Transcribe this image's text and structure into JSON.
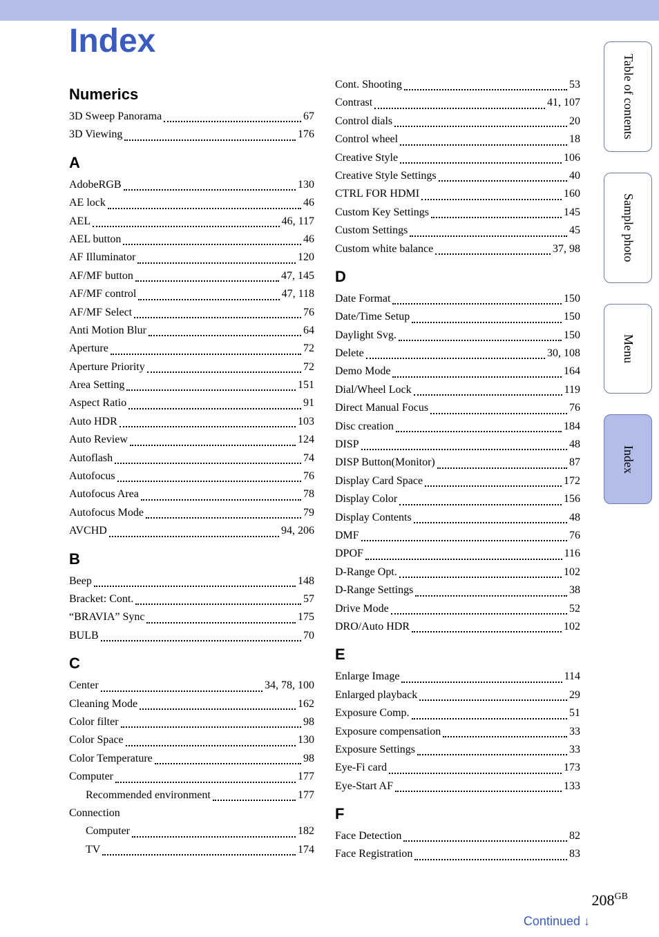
{
  "title": "Index",
  "tabs": [
    {
      "label": "Table of\ncontents",
      "active": false
    },
    {
      "label": "Sample photo",
      "active": false
    },
    {
      "label": "Menu",
      "active": false
    },
    {
      "label": "Index",
      "active": true
    }
  ],
  "footer": {
    "page": "208",
    "suffix": "GB",
    "continued": "Continued ↓"
  },
  "left": [
    {
      "head": "Numerics"
    },
    {
      "label": "3D Sweep Panorama",
      "page": "67"
    },
    {
      "label": "3D Viewing",
      "page": "176"
    },
    {
      "head": "A"
    },
    {
      "label": "AdobeRGB",
      "page": "130"
    },
    {
      "label": "AE lock",
      "page": "46"
    },
    {
      "label": "AEL",
      "page": "46, 117"
    },
    {
      "label": "AEL button",
      "page": "46"
    },
    {
      "label": "AF Illuminator",
      "page": "120"
    },
    {
      "label": "AF/MF button",
      "page": "47, 145"
    },
    {
      "label": "AF/MF control",
      "page": "47, 118"
    },
    {
      "label": "AF/MF Select",
      "page": "76"
    },
    {
      "label": "Anti Motion Blur",
      "page": "64"
    },
    {
      "label": "Aperture",
      "page": "72"
    },
    {
      "label": "Aperture Priority",
      "page": "72"
    },
    {
      "label": "Area Setting",
      "page": "151"
    },
    {
      "label": "Aspect Ratio",
      "page": "91"
    },
    {
      "label": "Auto HDR",
      "page": "103"
    },
    {
      "label": "Auto Review",
      "page": "124"
    },
    {
      "label": "Autoflash",
      "page": "74"
    },
    {
      "label": "Autofocus",
      "page": "76"
    },
    {
      "label": "Autofocus Area",
      "page": "78"
    },
    {
      "label": "Autofocus Mode",
      "page": "79"
    },
    {
      "label": "AVCHD",
      "page": "94, 206"
    },
    {
      "head": "B"
    },
    {
      "label": "Beep",
      "page": "148"
    },
    {
      "label": "Bracket: Cont.",
      "page": "57"
    },
    {
      "label": "“BRAVIA” Sync",
      "page": "175"
    },
    {
      "label": "BULB",
      "page": "70"
    },
    {
      "head": "C"
    },
    {
      "label": "Center",
      "page": "34, 78, 100"
    },
    {
      "label": "Cleaning Mode",
      "page": "162"
    },
    {
      "label": "Color filter",
      "page": "98"
    },
    {
      "label": "Color Space",
      "page": "130"
    },
    {
      "label": "Color Temperature",
      "page": "98"
    },
    {
      "label": "Computer",
      "page": "177"
    },
    {
      "label": "Recommended environment",
      "page": "177",
      "indent": true
    },
    {
      "label": "Connection",
      "nopage": true
    },
    {
      "label": "Computer",
      "page": "182",
      "indent": true
    },
    {
      "label": "TV",
      "page": "174",
      "indent": true
    }
  ],
  "right": [
    {
      "label": "Cont. Shooting",
      "page": "53"
    },
    {
      "label": "Contrast",
      "page": "41, 107"
    },
    {
      "label": "Control dials",
      "page": "20"
    },
    {
      "label": "Control wheel",
      "page": "18"
    },
    {
      "label": "Creative Style",
      "page": "106"
    },
    {
      "label": "Creative Style Settings",
      "page": "40"
    },
    {
      "label": "CTRL FOR HDMI",
      "page": "160"
    },
    {
      "label": "Custom Key Settings",
      "page": "145"
    },
    {
      "label": "Custom Settings",
      "page": "45"
    },
    {
      "label": "Custom white balance",
      "page": "37, 98"
    },
    {
      "head": "D"
    },
    {
      "label": "Date Format",
      "page": "150"
    },
    {
      "label": "Date/Time Setup",
      "page": "150"
    },
    {
      "label": "Daylight Svg.",
      "page": "150"
    },
    {
      "label": "Delete",
      "page": "30, 108"
    },
    {
      "label": "Demo Mode",
      "page": "164"
    },
    {
      "label": "Dial/Wheel Lock",
      "page": "119"
    },
    {
      "label": "Direct Manual Focus",
      "page": "76"
    },
    {
      "label": "Disc creation",
      "page": "184"
    },
    {
      "label": "DISP",
      "page": "48"
    },
    {
      "label": "DISP Button(Monitor)",
      "page": "87"
    },
    {
      "label": "Display Card Space",
      "page": "172"
    },
    {
      "label": "Display Color",
      "page": "156"
    },
    {
      "label": "Display Contents",
      "page": "48"
    },
    {
      "label": "DMF",
      "page": "76"
    },
    {
      "label": "DPOF",
      "page": "116"
    },
    {
      "label": "D-Range Opt.",
      "page": "102"
    },
    {
      "label": "D-Range Settings",
      "page": "38"
    },
    {
      "label": "Drive Mode",
      "page": "52"
    },
    {
      "label": "DRO/Auto HDR",
      "page": "102"
    },
    {
      "head": "E"
    },
    {
      "label": "Enlarge Image",
      "page": "114"
    },
    {
      "label": "Enlarged playback",
      "page": "29"
    },
    {
      "label": "Exposure Comp.",
      "page": "51"
    },
    {
      "label": "Exposure compensation",
      "page": "33"
    },
    {
      "label": "Exposure Settings",
      "page": "33"
    },
    {
      "label": "Eye-Fi card",
      "page": "173"
    },
    {
      "label": "Eye-Start AF",
      "page": "133"
    },
    {
      "head": "F"
    },
    {
      "label": "Face Detection",
      "page": "82"
    },
    {
      "label": "Face Registration",
      "page": "83"
    }
  ]
}
